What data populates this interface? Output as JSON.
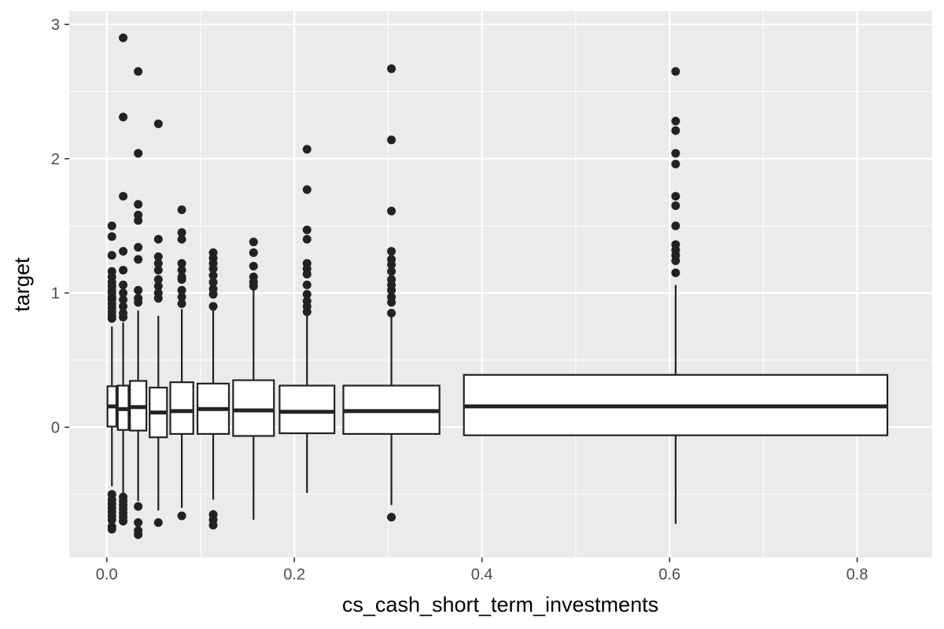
{
  "chart_data": {
    "type": "boxplot",
    "xlabel": "cs_cash_short_term_investments",
    "ylabel": "target",
    "xlim": [
      -0.04,
      0.88
    ],
    "ylim": [
      -0.97,
      3.1
    ],
    "x_ticks": [
      {
        "value": 0.0,
        "label": "0.0"
      },
      {
        "value": 0.2,
        "label": "0.2"
      },
      {
        "value": 0.4,
        "label": "0.4"
      },
      {
        "value": 0.6,
        "label": "0.6"
      },
      {
        "value": 0.8,
        "label": "0.8"
      }
    ],
    "y_ticks": [
      {
        "value": 0,
        "label": "0"
      },
      {
        "value": 1,
        "label": "1"
      },
      {
        "value": 2,
        "label": "2"
      },
      {
        "value": 3,
        "label": "3"
      }
    ],
    "x_minor": [
      0.1,
      0.3,
      0.5,
      0.7
    ],
    "y_minor": [
      -0.5,
      0.5,
      1.5,
      2.5
    ],
    "grid": true,
    "boxes": [
      {
        "x": 0.0055,
        "width": 0.0095,
        "q1": 0.005,
        "median": 0.155,
        "q3": 0.305,
        "whisker_low": -0.44,
        "whisker_high": 0.75,
        "outliers": [
          1.5,
          1.42,
          1.28,
          1.16,
          1.12,
          1.08,
          1.05,
          1.02,
          1.0,
          0.97,
          0.95,
          0.92,
          0.89,
          0.86,
          0.83,
          0.81,
          -0.5,
          -0.54,
          -0.57,
          -0.6,
          -0.63,
          -0.66,
          -0.69,
          -0.74,
          -0.76
        ]
      },
      {
        "x": 0.0175,
        "width": 0.0115,
        "q1": -0.02,
        "median": 0.135,
        "q3": 0.31,
        "whisker_low": -0.5,
        "whisker_high": 0.78,
        "outliers": [
          2.9,
          2.31,
          1.72,
          1.31,
          1.17,
          1.06,
          1.0,
          0.95,
          0.9,
          0.85,
          0.82,
          -0.52,
          -0.55,
          -0.58,
          -0.61,
          -0.64,
          -0.67,
          -0.7
        ]
      },
      {
        "x": 0.0335,
        "width": 0.0175,
        "q1": -0.025,
        "median": 0.15,
        "q3": 0.345,
        "whisker_low": -0.55,
        "whisker_high": 0.87,
        "outliers": [
          2.65,
          2.04,
          1.66,
          1.58,
          1.54,
          1.34,
          1.25,
          1.02,
          0.96,
          0.93,
          -0.59,
          -0.71,
          -0.77,
          -0.8
        ]
      },
      {
        "x": 0.055,
        "width": 0.0185,
        "q1": -0.075,
        "median": 0.11,
        "q3": 0.295,
        "whisker_low": -0.62,
        "whisker_high": 0.83,
        "outliers": [
          2.26,
          1.4,
          1.27,
          1.22,
          1.17,
          1.1,
          1.05,
          1.0,
          0.96,
          -0.71
        ]
      },
      {
        "x": 0.08,
        "width": 0.0245,
        "q1": -0.05,
        "median": 0.12,
        "q3": 0.335,
        "whisker_low": -0.6,
        "whisker_high": 0.88,
        "outliers": [
          1.62,
          1.45,
          1.4,
          1.22,
          1.17,
          1.12,
          1.1,
          1.02,
          0.97,
          0.92,
          -0.66
        ]
      },
      {
        "x": 0.1135,
        "width": 0.0335,
        "q1": -0.05,
        "median": 0.135,
        "q3": 0.325,
        "whisker_low": -0.54,
        "whisker_high": 0.88,
        "outliers": [
          1.3,
          1.26,
          1.22,
          1.18,
          1.13,
          1.08,
          1.03,
          0.99,
          0.9,
          -0.65,
          -0.69,
          -0.73
        ]
      },
      {
        "x": 0.1565,
        "width": 0.0435,
        "q1": -0.065,
        "median": 0.125,
        "q3": 0.35,
        "whisker_low": -0.69,
        "whisker_high": 1.02,
        "outliers": [
          1.38,
          1.3,
          1.2,
          1.12,
          1.08,
          1.05
        ]
      },
      {
        "x": 0.2135,
        "width": 0.0585,
        "q1": -0.045,
        "median": 0.115,
        "q3": 0.31,
        "whisker_low": -0.49,
        "whisker_high": 0.83,
        "outliers": [
          2.07,
          1.77,
          1.47,
          1.4,
          1.22,
          1.18,
          1.14,
          1.06,
          0.99,
          0.94,
          0.9,
          0.86
        ]
      },
      {
        "x": 0.3035,
        "width": 0.1025,
        "q1": -0.05,
        "median": 0.12,
        "q3": 0.31,
        "whisker_low": -0.58,
        "whisker_high": 0.83,
        "outliers": [
          2.67,
          2.14,
          1.61,
          1.31,
          1.25,
          1.21,
          1.16,
          1.1,
          1.06,
          1.02,
          0.97,
          0.93,
          0.85,
          -0.67
        ]
      },
      {
        "x": 0.6065,
        "width": 0.4515,
        "q1": -0.06,
        "median": 0.155,
        "q3": 0.39,
        "whisker_low": -0.72,
        "whisker_high": 1.06,
        "outliers": [
          2.65,
          2.28,
          2.21,
          2.04,
          1.96,
          1.72,
          1.65,
          1.5,
          1.36,
          1.32,
          1.28,
          1.24,
          1.15
        ]
      }
    ]
  }
}
